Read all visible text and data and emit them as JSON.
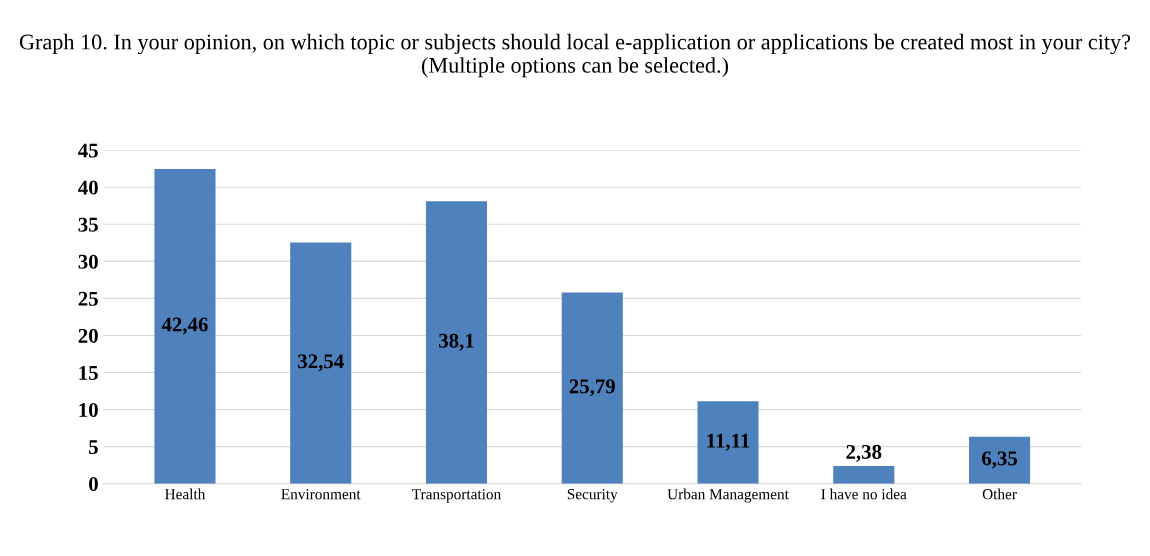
{
  "chart_data": {
    "type": "bar",
    "title": "Graph 10. In your opinion, on which topic or subjects should local e-application or applications be created most in your city? (Multiple options can be selected.)",
    "categories": [
      "Health",
      "Environment",
      "Transportation",
      "Security",
      "Urban Management",
      "I have no idea",
      "Other"
    ],
    "values": [
      42.46,
      32.54,
      38.1,
      25.79,
      11.11,
      2.38,
      6.35
    ],
    "value_labels": [
      "42,46",
      "32,54",
      "38,1",
      "25,79",
      "11,11",
      "2,38",
      "6,35"
    ],
    "color": "#4f81bd",
    "ylim": [
      0,
      45
    ],
    "yticks": [
      0,
      5,
      10,
      15,
      20,
      25,
      30,
      35,
      40,
      45
    ],
    "grid": "y"
  }
}
